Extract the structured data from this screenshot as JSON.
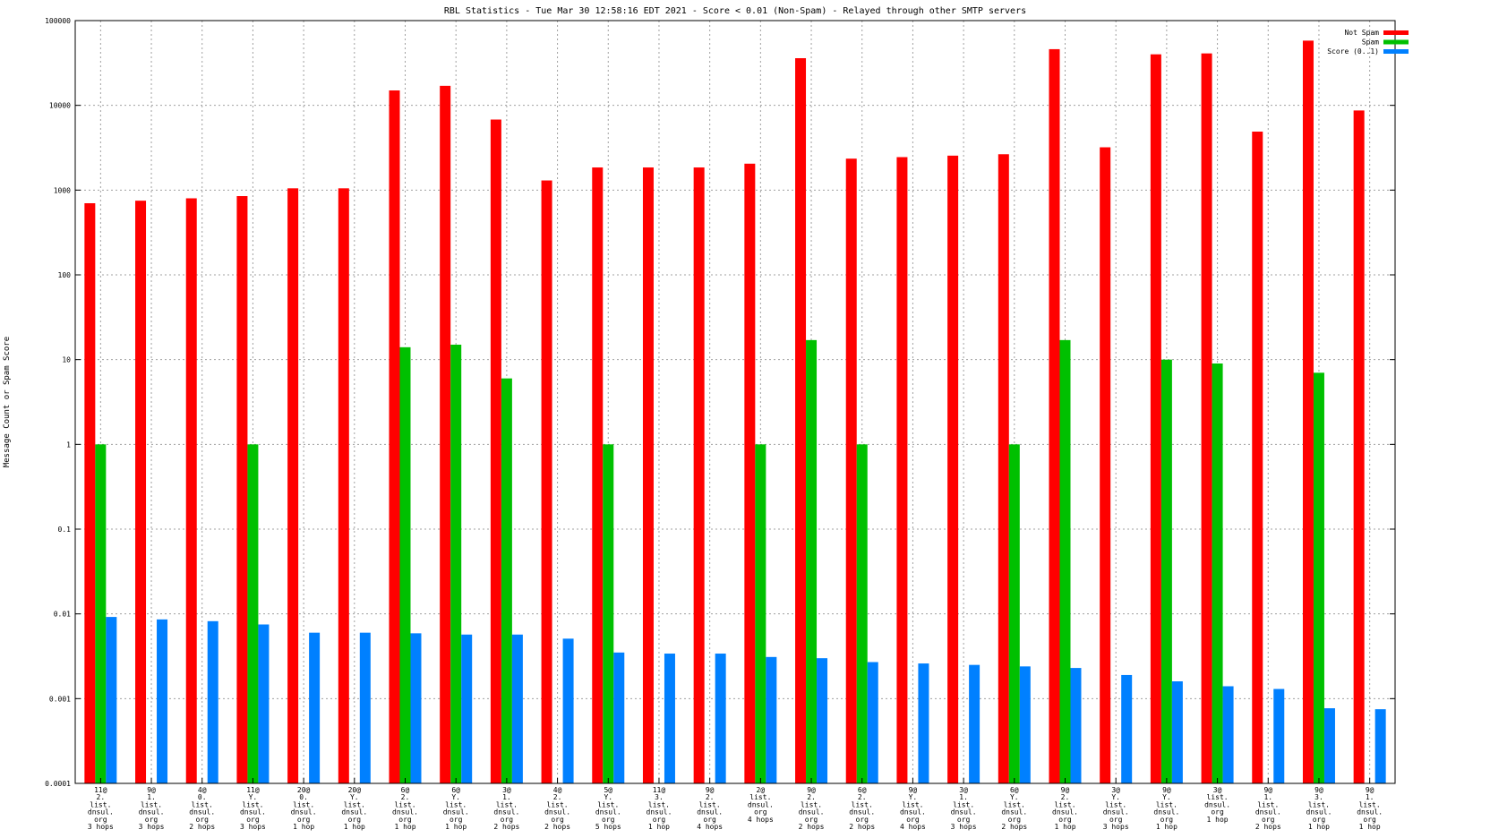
{
  "chart_data": {
    "type": "bar",
    "title": "RBL Statistics - Tue Mar 30 12:58:16 EDT 2021 - Score < 0.01 (Non-Spam) - Relayed through other SMTP servers",
    "xlabel": "",
    "ylabel": "Message Count or Spam Score",
    "yscale": "log",
    "ylim": [
      0.0001,
      100000
    ],
    "yticks": [
      "0.0001",
      "0.001",
      "0.01",
      "0.1",
      "1",
      "10",
      "100",
      "1000",
      "10000",
      "100000"
    ],
    "grid": true,
    "legend_position": "top-right",
    "colors": {
      "Not Spam": "#ff0000",
      "Spam": "#00c000",
      "Score (0..1)": "#0080ff"
    },
    "categories": [
      [
        "11@",
        "2.",
        "list.",
        "dnsul.",
        "org",
        "3 hops"
      ],
      [
        "9@",
        "1.",
        "list.",
        "dnsul.",
        "org",
        "3 hops"
      ],
      [
        "4@",
        "0.",
        "list.",
        "dnsul.",
        "org",
        "2 hops"
      ],
      [
        "11@",
        "Y.",
        "list.",
        "dnsul.",
        "org",
        "3 hops"
      ],
      [
        "20@",
        "0.",
        "list.",
        "dnsul.",
        "org",
        "1 hop"
      ],
      [
        "20@",
        "Y.",
        "list.",
        "dnsul.",
        "org",
        "1 hop"
      ],
      [
        "6@",
        "2.",
        "list.",
        "dnsul.",
        "org",
        "1 hop"
      ],
      [
        "6@",
        "Y.",
        "list.",
        "dnsul.",
        "org",
        "1 hop"
      ],
      [
        "3@",
        "1.",
        "list.",
        "dnsul.",
        "org",
        "2 hops"
      ],
      [
        "4@",
        "2.",
        "list.",
        "dnsul.",
        "org",
        "2 hops"
      ],
      [
        "5@",
        "Y.",
        "list.",
        "dnsul.",
        "org",
        "5 hops"
      ],
      [
        "11@",
        "3.",
        "list.",
        "dnsul.",
        "org",
        "1 hop"
      ],
      [
        "9@",
        "2.",
        "list.",
        "dnsul.",
        "org",
        "4 hops"
      ],
      [
        "2@",
        "list.",
        "dnsul.",
        "org",
        "4 hops"
      ],
      [
        "9@",
        "2.",
        "list.",
        "dnsul.",
        "org",
        "2 hops"
      ],
      [
        "6@",
        "2.",
        "list.",
        "dnsul.",
        "org",
        "2 hops"
      ],
      [
        "9@",
        "Y.",
        "list.",
        "dnsul.",
        "org",
        "4 hops"
      ],
      [
        "3@",
        "1.",
        "list.",
        "dnsul.",
        "org",
        "3 hops"
      ],
      [
        "6@",
        "Y.",
        "list.",
        "dnsul.",
        "org",
        "2 hops"
      ],
      [
        "9@",
        "2.",
        "list.",
        "dnsul.",
        "org",
        "1 hop"
      ],
      [
        "3@",
        "Y.",
        "list.",
        "dnsul.",
        "org",
        "3 hops"
      ],
      [
        "9@",
        "Y.",
        "list.",
        "dnsul.",
        "org",
        "1 hop"
      ],
      [
        "3@",
        "list.",
        "dnsul.",
        "org",
        "1 hop"
      ],
      [
        "9@",
        "1.",
        "list.",
        "dnsul.",
        "org",
        "2 hops"
      ],
      [
        "9@",
        "3.",
        "list.",
        "dnsul.",
        "org",
        "1 hop"
      ],
      [
        "9@",
        "1.",
        "list.",
        "dnsul.",
        "org",
        "1 hop"
      ]
    ],
    "series": [
      {
        "name": "Not Spam",
        "values": [
          700,
          750,
          800,
          850,
          1050,
          1050,
          15000,
          17000,
          6800,
          1300,
          1850,
          1850,
          1850,
          2050,
          36000,
          2350,
          2450,
          2550,
          2650,
          46000,
          3200,
          40000,
          41000,
          4900,
          58000,
          8700
        ]
      },
      {
        "name": "Spam",
        "values": [
          1,
          0,
          0,
          1,
          0,
          0,
          14,
          15,
          6,
          0,
          1,
          0,
          0,
          1,
          17,
          1,
          0,
          0,
          1,
          17,
          0,
          10,
          9,
          0,
          7,
          0
        ]
      },
      {
        "name": "Score (0..1)",
        "values": [
          0.0092,
          0.0086,
          0.0082,
          0.0075,
          0.006,
          0.006,
          0.0059,
          0.0057,
          0.0057,
          0.0051,
          0.0035,
          0.0034,
          0.0034,
          0.0031,
          0.003,
          0.0027,
          0.0026,
          0.0025,
          0.0024,
          0.0023,
          0.0019,
          0.0016,
          0.0014,
          0.0013,
          0.00077,
          0.00075
        ]
      }
    ]
  }
}
